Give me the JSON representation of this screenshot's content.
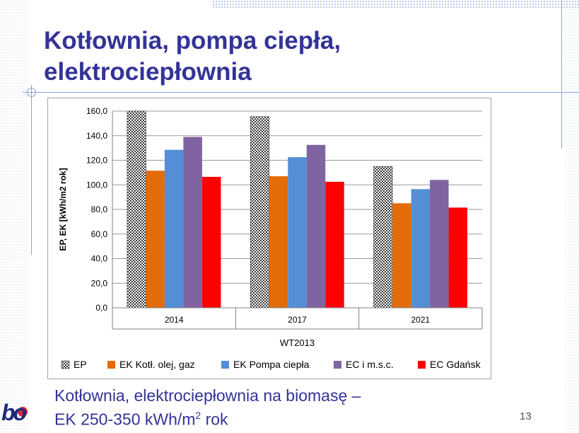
{
  "slide": {
    "title_line1": "Kotłownia, pompa ciepła,",
    "title_line2": "elektrociepłownia",
    "subtitle_line1": "Kotłownia, elektrociepłownia na biomasę –",
    "subtitle_line2_prefix": "EK 250-350 kWh/m",
    "subtitle_line2_sup": "2",
    "subtitle_line2_suffix": " rok",
    "page_number": "13",
    "logo_text": "bo"
  },
  "colors": {
    "title": "#333399",
    "EP": "#404040",
    "EK_kotl": "#e36c09",
    "EK_pompa": "#558ed5",
    "EC_msc": "#8064a2",
    "EC_gdansk": "#ff0000"
  },
  "chart_data": {
    "type": "bar",
    "categories": [
      "2014",
      "2017",
      "2021"
    ],
    "series": [
      {
        "name": "EP",
        "values": [
          160.0,
          155.5,
          115.0
        ]
      },
      {
        "name": "EK Kotł. olej, gaz",
        "values": [
          111.5,
          107.0,
          85.0
        ]
      },
      {
        "name": "EK Pompa ciepła",
        "values": [
          128.5,
          122.5,
          96.5
        ]
      },
      {
        "name": "EC i m.s.c.",
        "values": [
          139.0,
          132.5,
          104.0
        ]
      },
      {
        "name": "EC Gdańsk",
        "values": [
          106.5,
          102.5,
          81.5
        ]
      }
    ],
    "xlabel": "WT2013",
    "ylabel": "EP, EK [kWh/m2 rok]",
    "ylim": [
      0,
      160
    ],
    "yticks": [
      "0,0",
      "20,0",
      "40,0",
      "60,0",
      "80,0",
      "100,0",
      "120,0",
      "140,0",
      "160,0"
    ],
    "grid": true,
    "legend": "bottom"
  }
}
